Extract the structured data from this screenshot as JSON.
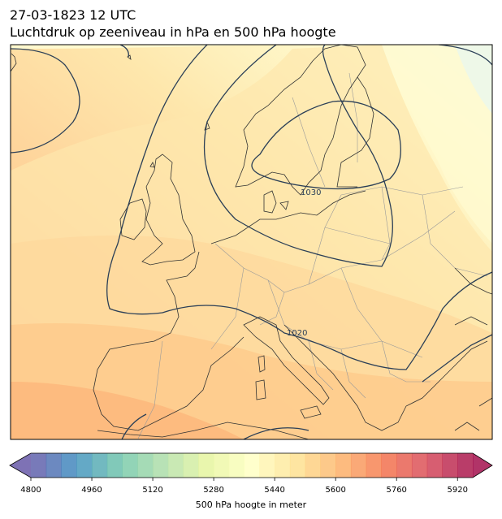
{
  "title": {
    "datetime": "27-03-1823 12 UTC",
    "subtitle": "Luchtdruk op zeeniveau in hPa en 500 hPa hoogte"
  },
  "map": {
    "isobar_labels": [
      "1030",
      "1020"
    ],
    "colors": {
      "coast": "#333333",
      "border": "#9a9a9a",
      "isobar": "#2b3f57",
      "frame": "#000000"
    }
  },
  "colorbar": {
    "label": "500 hPa hoogte in meter",
    "min": 4800,
    "max": 5960,
    "step": 40,
    "ticks": [
      4800,
      4960,
      5120,
      5280,
      5440,
      5600,
      5760,
      5920
    ],
    "extend": "both",
    "colormap": [
      "#5e4fa2",
      "#3288bd",
      "#66c2a5",
      "#abdda4",
      "#e6f598",
      "#ffffbf",
      "#fee08b",
      "#fdae61",
      "#f46d43",
      "#d53e4f",
      "#9e0142"
    ]
  }
}
